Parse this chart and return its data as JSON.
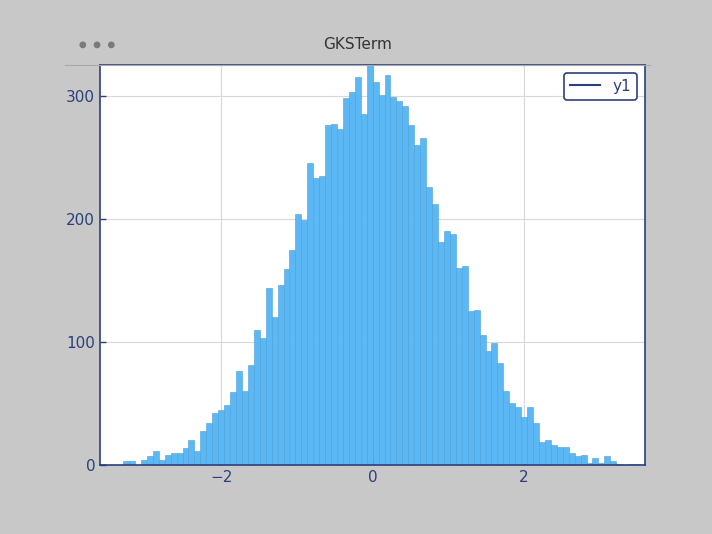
{
  "title": "GKSTerm",
  "bar_color": "#5bb8f5",
  "bar_edge_color": "#4a9fd4",
  "legend_label": "y1",
  "legend_line_color": "#2b3f7a",
  "xlim": [
    -3.6,
    3.6
  ],
  "ylim": [
    0,
    325
  ],
  "yticks": [
    0,
    100,
    200,
    300
  ],
  "xticks": [
    -2,
    0,
    2
  ],
  "n_bins": 100,
  "n_samples": 10000,
  "seed": 42,
  "grid_color": "#d8d8d8",
  "outer_bg": "#c8c8c8",
  "window_bg": "#d4d4d4",
  "titlebar_bg": "#d8d8d8",
  "plot_bg_color": "#ffffff",
  "axis_color": "#2b3f7a",
  "tick_color": "#2b3f7a",
  "bar_linewidth": 0.4,
  "figsize": [
    7.12,
    5.34
  ],
  "dpi": 100
}
